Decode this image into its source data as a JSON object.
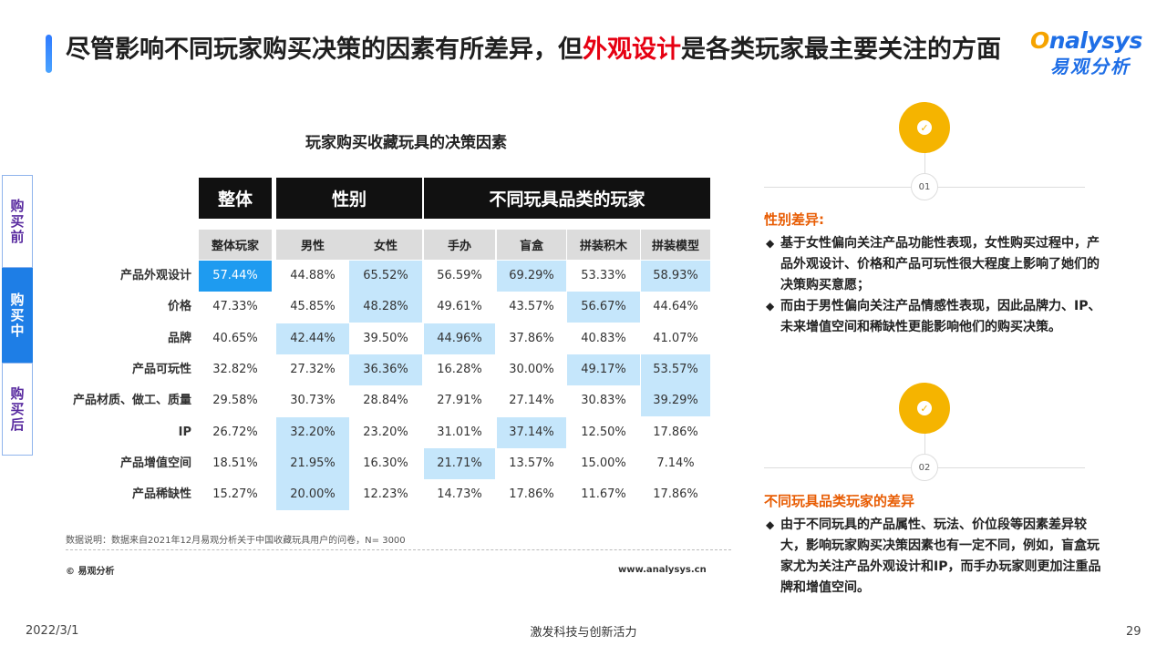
{
  "title": {
    "part1": "尽管影响不同玩家购买决策的因素有所差异，但",
    "highlight": "外观设计",
    "part2": "是各类玩家最主要关注的方面"
  },
  "logo": {
    "en_o": "O",
    "en_rest": "nalysys",
    "cn": "易观分析"
  },
  "side_tabs": [
    "购买前",
    "购买中",
    "购买后"
  ],
  "table": {
    "title": "玩家购买收藏玩具的决策因素",
    "groups": [
      "整体",
      "性别",
      "不同玩具品类的玩家"
    ],
    "columns": [
      "整体玩家",
      "男性",
      "女性",
      "手办",
      "盲盒",
      "拼装积木",
      "拼装模型"
    ],
    "rows": [
      {
        "label": "产品外观设计",
        "values": [
          "57.44%",
          "44.88%",
          "65.52%",
          "56.59%",
          "69.29%",
          "53.33%",
          "58.93%"
        ]
      },
      {
        "label": "价格",
        "values": [
          "47.33%",
          "45.85%",
          "48.28%",
          "49.61%",
          "43.57%",
          "56.67%",
          "44.64%"
        ]
      },
      {
        "label": "品牌",
        "values": [
          "40.65%",
          "42.44%",
          "39.50%",
          "44.96%",
          "37.86%",
          "40.83%",
          "41.07%"
        ]
      },
      {
        "label": "产品可玩性",
        "values": [
          "32.82%",
          "27.32%",
          "36.36%",
          "16.28%",
          "30.00%",
          "49.17%",
          "53.57%"
        ]
      },
      {
        "label": "产品材质、做工、质量",
        "values": [
          "29.58%",
          "30.73%",
          "28.84%",
          "27.91%",
          "27.14%",
          "30.83%",
          "39.29%"
        ]
      },
      {
        "label": "IP",
        "values": [
          "26.72%",
          "32.20%",
          "23.20%",
          "31.01%",
          "37.14%",
          "12.50%",
          "17.86%"
        ]
      },
      {
        "label": "产品增值空间",
        "values": [
          "18.51%",
          "21.95%",
          "16.30%",
          "21.71%",
          "13.57%",
          "15.00%",
          "7.14%"
        ]
      },
      {
        "label": "产品稀缺性",
        "values": [
          "15.27%",
          "20.00%",
          "12.23%",
          "14.73%",
          "17.86%",
          "11.67%",
          "17.86%"
        ]
      }
    ],
    "note": "数据说明：数据来自2021年12月易观分析关于中国收藏玩具用户的问卷，N= 3000",
    "copyright": "© 易观分析",
    "url": "www.analysys.cn"
  },
  "findings": [
    {
      "num": "01",
      "heading": "性别差异:",
      "bullets": [
        "基于女性偏向关注产品功能性表现，女性购买过程中，产品外观设计、价格和产品可玩性很大程度上影响了她们的决策购买意愿；",
        "而由于男性偏向关注产品情感性表现，因此品牌力、IP、未来增值空间和稀缺性更能影响他们的购买决策。"
      ]
    },
    {
      "num": "02",
      "heading": "不同玩具品类玩家的差异",
      "bullets": [
        "由于不同玩具的产品属性、玩法、价位段等因素差异较大，影响玩家购买决策因素也有一定不同，例如，盲盒玩家尤为关注产品外观设计和IP，而手办玩家则更加注重品牌和增值空间。"
      ]
    }
  ],
  "footer": {
    "date": "2022/3/1",
    "slogan": "激发科技与创新活力",
    "page": "29"
  },
  "colors": {
    "accent_red": "#e60012",
    "highlight_dark": "#1e9bf0",
    "highlight_light": "#c5e6fb",
    "orange": "#e85d04",
    "circle": "#f5b400"
  }
}
